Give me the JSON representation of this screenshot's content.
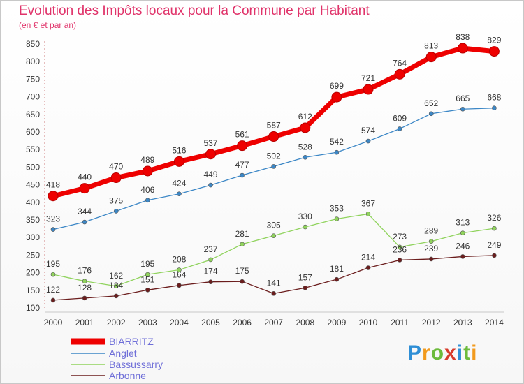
{
  "title": "Evolution des Impôts locaux pour la Commune par Habitant",
  "subtitle": "(en € et par an)",
  "logo": {
    "text": "Proxiti",
    "colors": [
      "#2f8fd6",
      "#f29a1d",
      "#6dbb3c",
      "#d73a2a",
      "#2f8fd6",
      "#6dbb3c",
      "#f29a1d"
    ]
  },
  "chart_data": {
    "type": "line",
    "x": [
      2000,
      2001,
      2002,
      2003,
      2004,
      2005,
      2006,
      2007,
      2008,
      2009,
      2010,
      2011,
      2012,
      2013,
      2014
    ],
    "ylim": [
      100,
      850
    ],
    "yticks": [
      100,
      150,
      200,
      250,
      300,
      350,
      400,
      450,
      500,
      550,
      600,
      650,
      700,
      750,
      800,
      850
    ],
    "grid": false,
    "legend_position": "bottom-left",
    "series": [
      {
        "name": "BIARRITZ",
        "color": "#ee0000",
        "values": [
          418,
          440,
          470,
          489,
          516,
          537,
          561,
          587,
          612,
          699,
          721,
          764,
          813,
          838,
          829
        ]
      },
      {
        "name": "Anglet",
        "color": "#3c87c6",
        "values": [
          323,
          344,
          375,
          406,
          424,
          449,
          477,
          502,
          528,
          542,
          574,
          609,
          652,
          665,
          668
        ]
      },
      {
        "name": "Bassussarry",
        "color": "#90d35d",
        "values": [
          195,
          176,
          162,
          195,
          208,
          237,
          281,
          305,
          330,
          353,
          367,
          273,
          289,
          313,
          326
        ]
      },
      {
        "name": "Arbonne",
        "color": "#6b1d1d",
        "values": [
          122,
          128,
          134,
          151,
          164,
          174,
          175,
          141,
          157,
          181,
          214,
          236,
          239,
          246,
          249
        ]
      }
    ]
  }
}
